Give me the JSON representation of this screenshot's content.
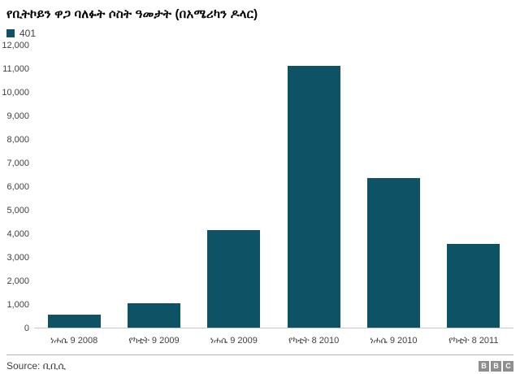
{
  "header": {
    "title": "የቢትኮይን ዋጋ ባለፉት ሶስት ዓመታት (በአሜሪካን ዶላር)",
    "legend": {
      "label": "401",
      "swatch_color": "#0d5265"
    }
  },
  "chart_data": {
    "type": "bar",
    "title": "የቢትኮይን ዋጋ ባለፉት ሶስት ዓመታት (በአሜሪካን ዶላር)",
    "categories": [
      "ነሐሴ 9 2008",
      "የካቲት 9 2009",
      "ነሐሴ 9 2009",
      "የካቲት 8 2010",
      "ነሐሴ 9 2010",
      "የካቲት 8 2011"
    ],
    "series": [
      {
        "name": "401",
        "values": [
          550,
          1050,
          4150,
          11150,
          6350,
          3550
        ]
      }
    ],
    "xlabel": "",
    "ylabel": "",
    "ylim": [
      0,
      12000
    ],
    "ytick_step": 1000,
    "grid": false,
    "legend_position": "top-left",
    "bar_color": "#0d5265"
  },
  "footer": {
    "source": "Source: ቢቢሲ",
    "logo_letters": [
      "B",
      "B",
      "C"
    ]
  }
}
